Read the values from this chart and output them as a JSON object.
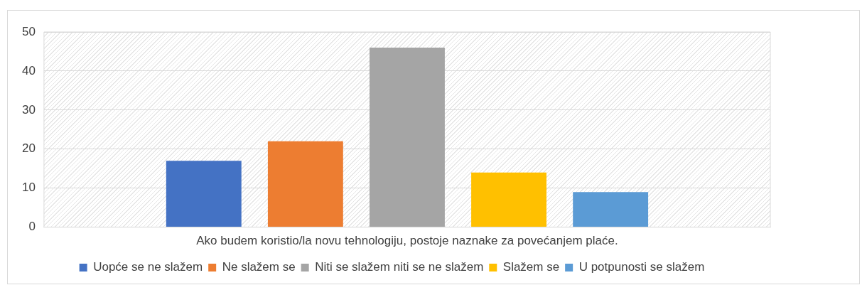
{
  "chart_data": {
    "type": "bar",
    "categories": [
      "Ako budem koristio/la novu tehnologiju, postoje naznake za povećanjem plaće."
    ],
    "series": [
      {
        "name": "Uopće se ne slažem",
        "color": "#4472c4",
        "values": [
          17
        ]
      },
      {
        "name": "Ne slažem se",
        "color": "#ed7d31",
        "values": [
          22
        ]
      },
      {
        "name": "Niti se slažem niti se ne slažem",
        "color": "#a5a5a5",
        "values": [
          46
        ]
      },
      {
        "name": "Slažem se",
        "color": "#ffc000",
        "values": [
          14
        ]
      },
      {
        "name": "U potpunosti se slažem",
        "color": "#5b9bd5",
        "values": [
          9
        ]
      }
    ],
    "ylim": [
      0,
      50
    ],
    "yticks": [
      0,
      10,
      20,
      30,
      40,
      50
    ],
    "grid": "y",
    "legend": "bottom"
  }
}
